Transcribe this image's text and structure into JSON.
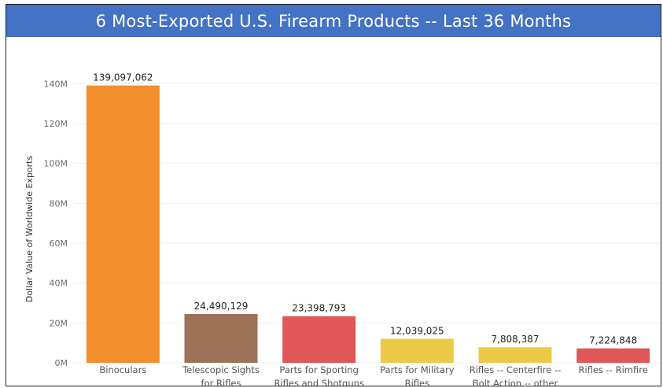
{
  "title": "6 Most-Exported U.S. Firearm Products -- Last 36 Months",
  "colors": {
    "title_bg": "#4472c4",
    "title_text": "#ffffff",
    "grid": "#efefef"
  },
  "chart_data": {
    "type": "bar",
    "title": "6 Most-Exported U.S. Firearm Products -- Last 36 Months",
    "xlabel": "",
    "ylabel": "Dollar Value of Worldwide Exports",
    "ylim": [
      0,
      150000000
    ],
    "yticks": [
      0,
      20000000,
      40000000,
      60000000,
      80000000,
      100000000,
      120000000,
      140000000
    ],
    "ytick_labels": [
      "0M",
      "20M",
      "40M",
      "60M",
      "80M",
      "100M",
      "120M",
      "140M"
    ],
    "grid": true,
    "categories": [
      [
        "Binoculars"
      ],
      [
        "Telescopic Sights",
        "for Rifles"
      ],
      [
        "Parts for Sporting",
        "Rifles and Shotguns"
      ],
      [
        "Parts for Military",
        "Rifles"
      ],
      [
        "Rifles -- Centerfire --",
        "Bolt Action -- other"
      ],
      [
        "Rifles -- Rimfire"
      ]
    ],
    "values": [
      139097062,
      24490129,
      23398793,
      12039025,
      7808387,
      7224848
    ],
    "value_labels": [
      "139,097,062",
      "24,490,129",
      "23,398,793",
      "12,039,025",
      "7,808,387",
      "7,224,848"
    ],
    "bar_colors": [
      "#f28e2b",
      "#9c7358",
      "#e15759",
      "#edc948",
      "#edc948",
      "#e15759"
    ]
  }
}
